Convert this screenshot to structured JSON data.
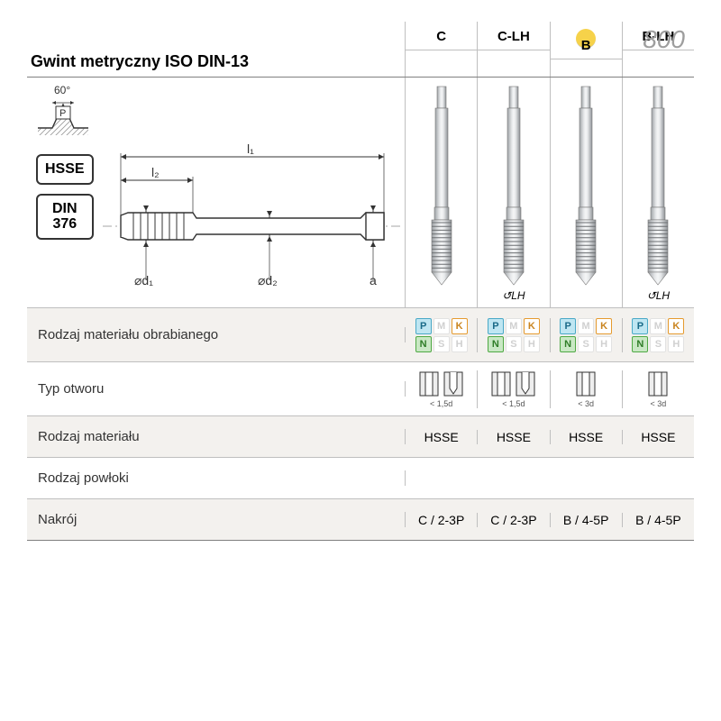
{
  "page_number": "800",
  "title": "Gwint metryczny ISO DIN-13",
  "badges": {
    "material": "HSSE",
    "standard_line1": "DIN",
    "standard_line2": "376"
  },
  "thread_diagram": {
    "angle_label": "60°",
    "pitch_label": "P",
    "dims": {
      "l1": "l₁",
      "l2": "l₂",
      "d1": "⌀d₁",
      "d2": "⌀d₂",
      "a": "a"
    }
  },
  "columns": [
    {
      "key": "C",
      "label": "C",
      "highlight": false,
      "lh": false
    },
    {
      "key": "C-LH",
      "label": "C-LH",
      "highlight": false,
      "lh": true
    },
    {
      "key": "B",
      "label": "B",
      "highlight": true,
      "lh": false
    },
    {
      "key": "B-LH",
      "label": "B-LH",
      "highlight": false,
      "lh": true
    }
  ],
  "lh_symbol": "↺LH",
  "rows": {
    "material_worked": {
      "label": "Rodzaj materiału obrabianego",
      "chips_layout": [
        "P",
        "M",
        "K",
        "N",
        "S",
        "H"
      ],
      "chips_on": [
        "P",
        "K",
        "N"
      ]
    },
    "hole_type": {
      "label": "Typ otworu",
      "values": [
        {
          "shapes": [
            "through",
            "blind"
          ],
          "caption": "< 1,5d"
        },
        {
          "shapes": [
            "through",
            "blind"
          ],
          "caption": "< 1,5d"
        },
        {
          "shapes": [
            "through"
          ],
          "caption": "< 3d"
        },
        {
          "shapes": [
            "through"
          ],
          "caption": "< 3d"
        }
      ]
    },
    "tool_material": {
      "label": "Rodzaj materiału",
      "values": [
        "HSSE",
        "HSSE",
        "HSSE",
        "HSSE"
      ]
    },
    "coating": {
      "label": "Rodzaj powłoki",
      "values": [
        "",
        "",
        "",
        ""
      ]
    },
    "chamfer": {
      "label": "Nakrój",
      "values": [
        "C / 2-3P",
        "C / 2-3P",
        "B / 4-5P",
        "B / 4-5P"
      ]
    }
  },
  "colors": {
    "rule": "#808080",
    "grid": "#bfbfbf",
    "shade": "#f3f1ee",
    "page_num": "#9e9e9e",
    "highlight": "#f6d24a"
  }
}
